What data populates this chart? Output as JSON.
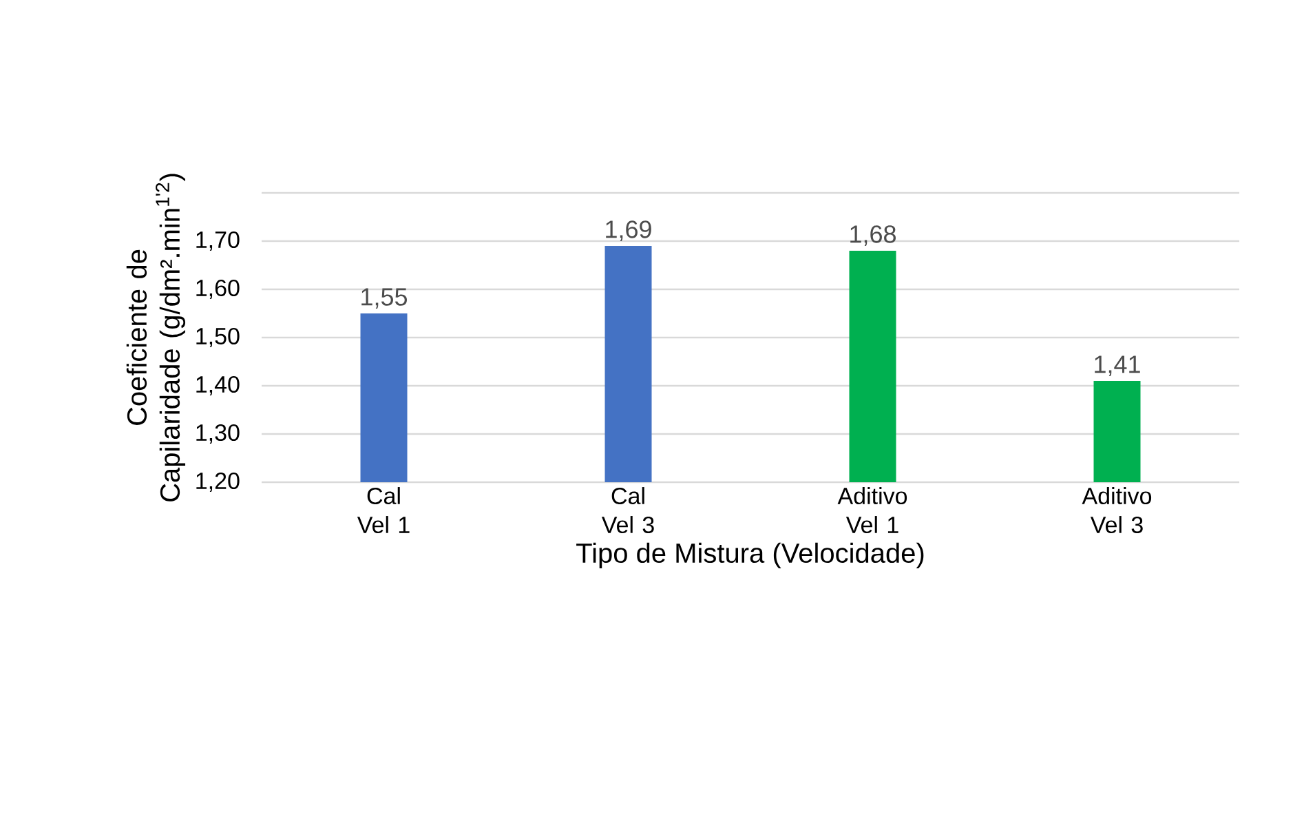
{
  "chart_data": {
    "type": "bar",
    "xlabel": "Tipo de Mistura (Velocidade)",
    "ylabel": "Coeficiente de Capilaridade (g/dm².min$^{1'2}$)",
    "categories": [
      "Cal Vel 1",
      "Cal Vel 3",
      "Aditivo Vel 1",
      "Aditivo Vel 3"
    ],
    "values": [
      1.55,
      1.69,
      1.68,
      1.41
    ],
    "value_labels": [
      "1,55",
      "1,69",
      "1,68",
      "1,41"
    ],
    "colors": [
      "#4472c4",
      "#4472c4",
      "#00b050",
      "#00b050"
    ],
    "ylim": [
      1.2,
      1.8
    ],
    "yticks": [
      {
        "value": 1.2,
        "label": "1,20"
      },
      {
        "value": 1.3,
        "label": "1,30"
      },
      {
        "value": 1.4,
        "label": "1,40"
      },
      {
        "value": 1.5,
        "label": "1,50"
      },
      {
        "value": 1.6,
        "label": "1,60"
      },
      {
        "value": 1.7,
        "label": "1,70"
      },
      {
        "value": 1.8,
        "label": null
      }
    ],
    "grid": "y"
  }
}
